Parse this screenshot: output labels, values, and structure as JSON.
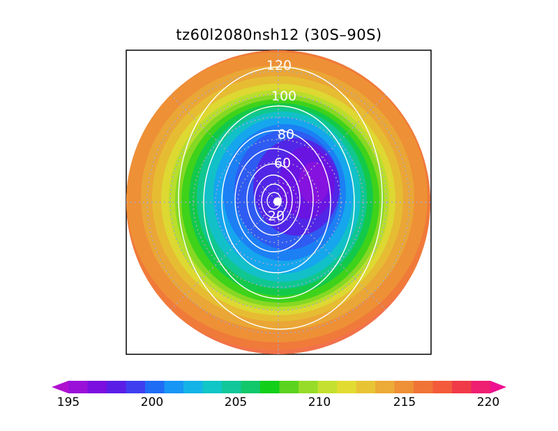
{
  "title": "tz60l2080nsh12 (30S–90S)",
  "map": {
    "projection": "south-polar stereographic",
    "lat_range": [
      "30S",
      "90S"
    ],
    "contour_labels": [
      "120",
      "100",
      "80",
      "60",
      "20"
    ]
  },
  "colorbar": {
    "labels": [
      "195",
      "200",
      "205",
      "210",
      "215",
      "220"
    ],
    "colors": [
      "#9a10d8",
      "#7b0fe0",
      "#5a1ee6",
      "#3f3ef0",
      "#1f6cf5",
      "#1796f5",
      "#13b3e8",
      "#10c6c6",
      "#10c89a",
      "#11c86a",
      "#12cf1a",
      "#5ad41e",
      "#96dc28",
      "#c5e030",
      "#e2dc32",
      "#e8c435",
      "#ecaa36",
      "#ee9036",
      "#f07436",
      "#f35a3a",
      "#f03a48",
      "#ee1e70"
    ],
    "extend": "both"
  }
}
